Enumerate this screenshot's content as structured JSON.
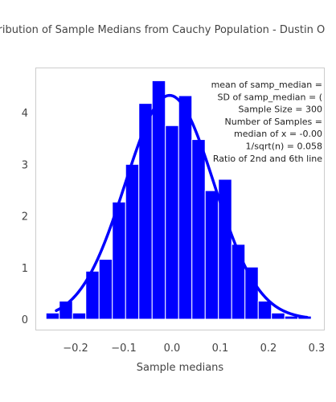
{
  "chart_data": {
    "type": "bar",
    "title": "Distribution of Sample Medians from Cauchy Population -  Dustin O",
    "xlabel": "Sample medians",
    "ylabel": "",
    "xlim": [
      -0.29,
      0.31
    ],
    "ylim": [
      -0.2,
      4.9
    ],
    "x_ticks": [
      -0.2,
      -0.1,
      0.0,
      0.1,
      0.2,
      0.3
    ],
    "x_tick_labels": [
      "−0.2",
      "−0.1",
      "0.0",
      "0.1",
      "0.2",
      "0.3"
    ],
    "y_ticks": [
      0,
      1,
      2,
      3,
      4
    ],
    "y_tick_labels": [
      "0",
      "1",
      "2",
      "3",
      "4"
    ],
    "bar_width": 0.0275,
    "bins": [
      {
        "x": -0.2475,
        "value": 0.12
      },
      {
        "x": -0.22,
        "value": 0.35
      },
      {
        "x": -0.1925,
        "value": 0.12
      },
      {
        "x": -0.165,
        "value": 0.93
      },
      {
        "x": -0.1375,
        "value": 1.16
      },
      {
        "x": -0.11,
        "value": 2.27
      },
      {
        "x": -0.0825,
        "value": 3.0
      },
      {
        "x": -0.055,
        "value": 4.18
      },
      {
        "x": -0.0275,
        "value": 4.62
      },
      {
        "x": 0.0,
        "value": 3.75
      },
      {
        "x": 0.0275,
        "value": 4.33
      },
      {
        "x": 0.055,
        "value": 3.48
      },
      {
        "x": 0.0825,
        "value": 2.49
      },
      {
        "x": 0.11,
        "value": 2.71
      },
      {
        "x": 0.1375,
        "value": 1.45
      },
      {
        "x": 0.165,
        "value": 1.01
      },
      {
        "x": 0.1925,
        "value": 0.35
      },
      {
        "x": 0.22,
        "value": 0.12
      },
      {
        "x": 0.2475,
        "value": 0.06
      },
      {
        "x": 0.275,
        "value": 0.06
      }
    ],
    "curve": {
      "type": "normal density",
      "mean": -0.005,
      "sd": 0.092,
      "x_range": [
        -0.24,
        0.28
      ]
    },
    "colors": {
      "bars": "#0000ff",
      "curve": "#0000ff",
      "axis": "#cccccc"
    },
    "grid": false,
    "annotation_lines": [
      "mean of samp_median =",
      "SD of samp_median = (",
      "Sample Size = 300",
      "Number of Samples =",
      "median of x = -0.00",
      "1/sqrt(n) = 0.058",
      "Ratio of 2nd and 6th line"
    ]
  }
}
